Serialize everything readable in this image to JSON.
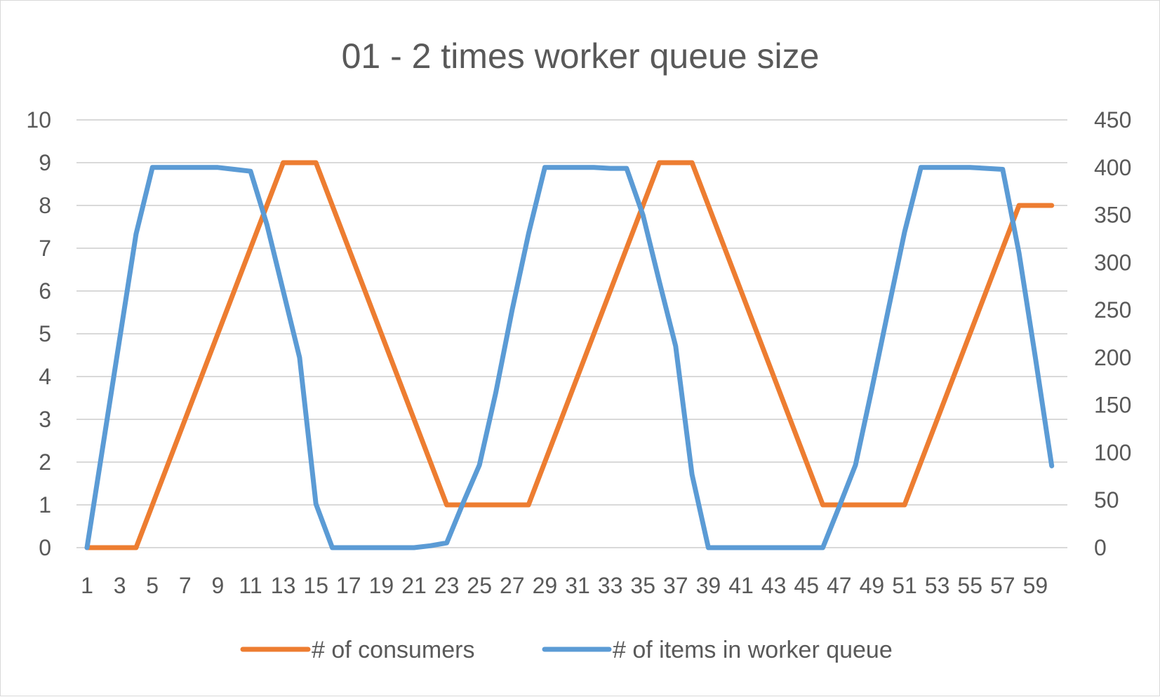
{
  "chart_data": {
    "type": "line",
    "title": "01 - 2 times worker queue size",
    "x": [
      1,
      2,
      3,
      4,
      5,
      6,
      7,
      8,
      9,
      10,
      11,
      12,
      13,
      14,
      15,
      16,
      17,
      18,
      19,
      20,
      21,
      22,
      23,
      24,
      25,
      26,
      27,
      28,
      29,
      30,
      31,
      32,
      33,
      34,
      35,
      36,
      37,
      38,
      39,
      40,
      41,
      42,
      43,
      44,
      45,
      46,
      47,
      48,
      49,
      50,
      51,
      52,
      53,
      54,
      55,
      56,
      57,
      58,
      59,
      60
    ],
    "x_tick_labels": [
      "1",
      "3",
      "5",
      "7",
      "9",
      "11",
      "13",
      "15",
      "17",
      "19",
      "21",
      "23",
      "25",
      "27",
      "29",
      "31",
      "33",
      "35",
      "37",
      "39",
      "41",
      "43",
      "45",
      "47",
      "49",
      "51",
      "53",
      "55",
      "57",
      "59"
    ],
    "y_left": {
      "min": 0,
      "max": 10,
      "ticks": [
        "0",
        "1",
        "2",
        "3",
        "4",
        "5",
        "6",
        "7",
        "8",
        "9",
        "10"
      ]
    },
    "y_right": {
      "min": 0,
      "max": 450,
      "ticks": [
        "0",
        "50",
        "100",
        "150",
        "200",
        "250",
        "300",
        "350",
        "400",
        "450"
      ]
    },
    "grid": true,
    "legend_position": "bottom",
    "series": [
      {
        "name": "# of consumers",
        "axis": "left",
        "color": "#ed7d31",
        "values": [
          0,
          0,
          0,
          0,
          1,
          2,
          3,
          4,
          5,
          6,
          7,
          8,
          9,
          9,
          9,
          8,
          7,
          6,
          5,
          4,
          3,
          2,
          1,
          1,
          1,
          1,
          1,
          1,
          2,
          3,
          4,
          5,
          6,
          7,
          8,
          9,
          9,
          9,
          8,
          7,
          6,
          5,
          4,
          3,
          2,
          1,
          1,
          1,
          1,
          1,
          1,
          2,
          3,
          4,
          5,
          6,
          7,
          8,
          8,
          8
        ]
      },
      {
        "name": "# of items in worker queue",
        "axis": "right",
        "color": "#5b9bd5",
        "values": [
          0,
          110,
          220,
          330,
          400,
          400,
          400,
          400,
          400,
          398,
          396,
          340,
          270,
          200,
          46,
          0,
          0,
          0,
          0,
          0,
          0,
          2,
          5,
          47,
          87,
          163,
          250,
          330,
          400,
          400,
          400,
          400,
          399,
          399,
          350,
          280,
          212,
          77,
          0,
          0,
          0,
          0,
          0,
          0,
          0,
          0,
          43,
          87,
          167,
          250,
          332,
          400,
          400,
          400,
          400,
          399,
          398,
          310,
          200,
          86
        ]
      }
    ]
  }
}
